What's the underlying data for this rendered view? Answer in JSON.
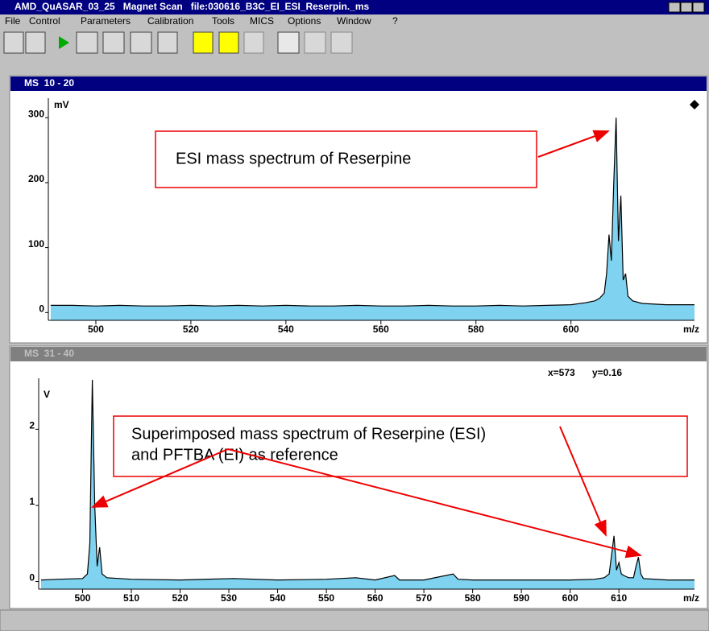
{
  "window": {
    "title": "AMD_QuASAR_03_25   Magnet Scan   file:030616_B3C_EI_ESI_Reserpin._ms",
    "menu": [
      "File",
      "Control",
      "Parameters",
      "Calibration",
      "Tools",
      "MICS",
      "Options",
      "Window",
      "?"
    ]
  },
  "panels": [
    {
      "title": "MS  10 - 20"
    },
    {
      "title": "MS  31 - 40",
      "cursor_x": "x=573",
      "cursor_y": "y=0.16"
    }
  ],
  "chart_data": [
    {
      "type": "line",
      "y_label": "mV",
      "x_label": "m/z",
      "color": "#000000",
      "fill_color": "#7fd3f0",
      "annotation": [
        "ESI mass spectrum of Reserpine"
      ],
      "xlim": [
        490,
        626
      ],
      "ylim": [
        -12,
        330
      ],
      "xticks": [
        500,
        520,
        540,
        560,
        580,
        600
      ],
      "yticks": [
        0,
        100,
        200,
        300
      ],
      "x": [
        490.5,
        495,
        500,
        505,
        510,
        515,
        520,
        525,
        530,
        535,
        540,
        545,
        550,
        555,
        560,
        565,
        570,
        575,
        580,
        585,
        590,
        595,
        600,
        603,
        605,
        606,
        607,
        607.5,
        608,
        608.5,
        609,
        609.5,
        610,
        610.5,
        611,
        611.5,
        612,
        613,
        615,
        620,
        626
      ],
      "values": [
        11,
        11,
        10,
        11,
        10,
        10,
        11,
        10,
        11,
        10,
        11,
        10,
        10,
        11,
        10,
        10,
        11,
        10,
        10,
        11,
        10,
        11,
        12,
        15,
        18,
        22,
        30,
        60,
        120,
        80,
        200,
        300,
        110,
        180,
        50,
        60,
        25,
        18,
        14,
        12,
        12
      ]
    },
    {
      "type": "line",
      "y_label": "V",
      "x_label": "m/z",
      "color": "#000000",
      "fill_color": "#7fd3f0",
      "annotation": [
        "Superimposed mass spectrum of Reserpine (ESI)",
        "and PFTBA (EI) as reference"
      ],
      "xlim": [
        491,
        625.5
      ],
      "ylim": [
        -0.1,
        2.67
      ],
      "xticks": [
        500,
        510,
        520,
        530,
        540,
        550,
        560,
        570,
        580,
        590,
        600,
        610
      ],
      "yticks": [
        0,
        1,
        2
      ],
      "x": [
        491.5,
        495,
        500,
        501,
        501.5,
        502,
        502.5,
        503,
        503.5,
        504,
        505,
        510,
        520,
        531,
        540,
        550,
        556,
        560,
        564,
        565,
        570,
        576,
        577,
        580,
        590,
        600,
        605,
        607,
        608,
        609,
        609.5,
        610,
        610.5,
        611,
        612,
        613,
        613.5,
        614,
        614.5,
        615,
        620,
        625.5
      ],
      "values": [
        0.02,
        0.03,
        0.04,
        0.1,
        0.5,
        2.65,
        1.0,
        0.2,
        0.45,
        0.1,
        0.05,
        0.03,
        0.02,
        0.04,
        0.02,
        0.03,
        0.05,
        0.02,
        0.08,
        0.02,
        0.02,
        0.1,
        0.03,
        0.02,
        0.02,
        0.02,
        0.03,
        0.05,
        0.1,
        0.6,
        0.15,
        0.25,
        0.1,
        0.08,
        0.05,
        0.05,
        0.2,
        0.32,
        0.1,
        0.04,
        0.02,
        0.02
      ]
    }
  ]
}
